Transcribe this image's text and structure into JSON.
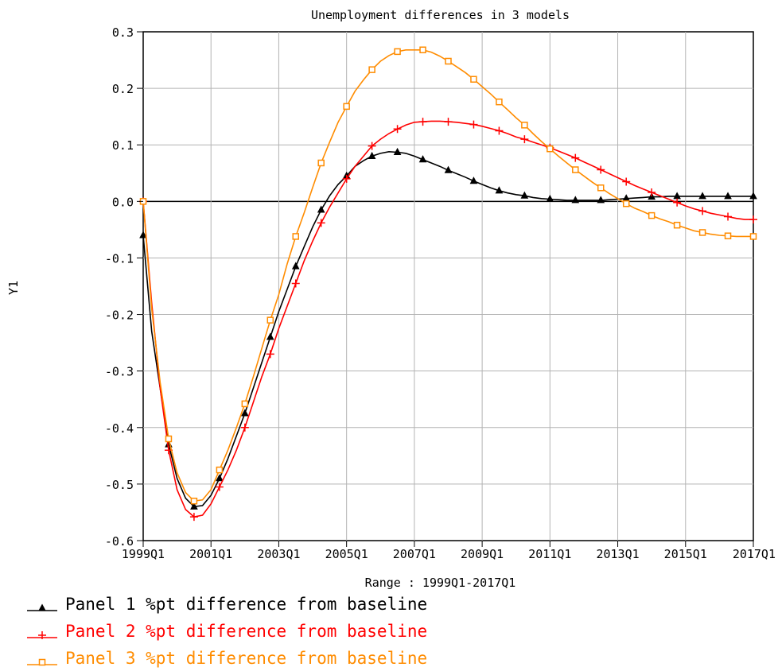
{
  "chart_data": {
    "type": "line",
    "title": "Unemployment differences in 3 models",
    "ylabel": "Y1",
    "xlabel": "Range : 1999Q1-2017Q1",
    "x_range": [
      1999.0,
      2017.0
    ],
    "ylim": [
      -0.6,
      0.3
    ],
    "yticks": [
      "0.3",
      "0.2",
      "0.1",
      "0.0",
      "-0.1",
      "-0.2",
      "-0.3",
      "-0.4",
      "-0.5",
      "-0.6"
    ],
    "xticks": [
      {
        "label": "1999Q1",
        "value": 1999.0
      },
      {
        "label": "2001Q1",
        "value": 2001.0
      },
      {
        "label": "2003Q1",
        "value": 2003.0
      },
      {
        "label": "2005Q1",
        "value": 2005.0
      },
      {
        "label": "2007Q1",
        "value": 2007.0
      },
      {
        "label": "2009Q1",
        "value": 2009.0
      },
      {
        "label": "2011Q1",
        "value": 2011.0
      },
      {
        "label": "2013Q1",
        "value": 2013.0
      },
      {
        "label": "2015Q1",
        "value": 2015.0
      },
      {
        "label": "2017Q1",
        "value": 2017.0
      }
    ],
    "grid": true,
    "zero_line": true,
    "legend_position": "bottom-left",
    "series": [
      {
        "name": "Panel 1 %pt difference from baseline",
        "color": "#000000",
        "marker": "triangle",
        "x": [
          1999.0,
          1999.25,
          1999.5,
          1999.75,
          2000.0,
          2000.25,
          2000.5,
          2000.75,
          2001.0,
          2001.25,
          2001.5,
          2001.75,
          2002.0,
          2002.25,
          2002.5,
          2002.75,
          2003.0,
          2003.25,
          2003.5,
          2003.75,
          2004.0,
          2004.25,
          2004.5,
          2004.75,
          2005.0,
          2005.25,
          2005.5,
          2005.75,
          2006.0,
          2006.25,
          2006.5,
          2006.75,
          2007.0,
          2007.25,
          2007.5,
          2007.75,
          2008.0,
          2008.25,
          2008.5,
          2008.75,
          2009.0,
          2009.25,
          2009.5,
          2009.75,
          2010.0,
          2010.25,
          2010.5,
          2010.75,
          2011.0,
          2011.25,
          2011.5,
          2011.75,
          2012.0,
          2012.25,
          2012.5,
          2012.75,
          2013.0,
          2013.25,
          2013.5,
          2013.75,
          2014.0,
          2014.25,
          2014.5,
          2014.75,
          2015.0,
          2015.25,
          2015.5,
          2015.75,
          2016.0,
          2016.25,
          2016.5,
          2016.75,
          2017.0
        ],
        "y": [
          -0.06,
          -0.23,
          -0.33,
          -0.43,
          -0.49,
          -0.525,
          -0.54,
          -0.538,
          -0.52,
          -0.49,
          -0.455,
          -0.415,
          -0.375,
          -0.33,
          -0.285,
          -0.24,
          -0.195,
          -0.155,
          -0.115,
          -0.08,
          -0.045,
          -0.015,
          0.01,
          0.03,
          0.045,
          0.062,
          0.072,
          0.08,
          0.085,
          0.088,
          0.087,
          0.085,
          0.08,
          0.074,
          0.068,
          0.062,
          0.055,
          0.049,
          0.043,
          0.036,
          0.03,
          0.024,
          0.019,
          0.015,
          0.012,
          0.01,
          0.007,
          0.005,
          0.004,
          0.003,
          0.002,
          0.002,
          0.002,
          0.002,
          0.002,
          0.003,
          0.004,
          0.005,
          0.006,
          0.007,
          0.008,
          0.008,
          0.009,
          0.009,
          0.009,
          0.009,
          0.009,
          0.009,
          0.009,
          0.009,
          0.009,
          0.009,
          0.009
        ]
      },
      {
        "name": "Panel 2 %pt difference from baseline",
        "color": "#ff0000",
        "marker": "plus",
        "x": [
          1999.0,
          1999.25,
          1999.5,
          1999.75,
          2000.0,
          2000.25,
          2000.5,
          2000.75,
          2001.0,
          2001.25,
          2001.5,
          2001.75,
          2002.0,
          2002.25,
          2002.5,
          2002.75,
          2003.0,
          2003.25,
          2003.5,
          2003.75,
          2004.0,
          2004.25,
          2004.5,
          2004.75,
          2005.0,
          2005.25,
          2005.5,
          2005.75,
          2006.0,
          2006.25,
          2006.5,
          2006.75,
          2007.0,
          2007.25,
          2007.5,
          2007.75,
          2008.0,
          2008.25,
          2008.5,
          2008.75,
          2009.0,
          2009.25,
          2009.5,
          2009.75,
          2010.0,
          2010.25,
          2010.5,
          2010.75,
          2011.0,
          2011.25,
          2011.5,
          2011.75,
          2012.0,
          2012.25,
          2012.5,
          2012.75,
          2013.0,
          2013.25,
          2013.5,
          2013.75,
          2014.0,
          2014.25,
          2014.5,
          2014.75,
          2015.0,
          2015.25,
          2015.5,
          2015.75,
          2016.0,
          2016.25,
          2016.5,
          2016.75,
          2017.0
        ],
        "y": [
          0.0,
          -0.18,
          -0.33,
          -0.44,
          -0.51,
          -0.545,
          -0.558,
          -0.555,
          -0.535,
          -0.505,
          -0.475,
          -0.44,
          -0.4,
          -0.355,
          -0.31,
          -0.27,
          -0.225,
          -0.185,
          -0.145,
          -0.105,
          -0.07,
          -0.038,
          -0.01,
          0.015,
          0.04,
          0.062,
          0.08,
          0.098,
          0.11,
          0.12,
          0.128,
          0.135,
          0.14,
          0.141,
          0.142,
          0.142,
          0.141,
          0.14,
          0.138,
          0.136,
          0.133,
          0.129,
          0.125,
          0.12,
          0.114,
          0.11,
          0.105,
          0.1,
          0.095,
          0.089,
          0.083,
          0.077,
          0.07,
          0.063,
          0.056,
          0.049,
          0.042,
          0.035,
          0.028,
          0.022,
          0.016,
          0.01,
          0.004,
          -0.002,
          -0.008,
          -0.013,
          -0.017,
          -0.021,
          -0.024,
          -0.027,
          -0.03,
          -0.032,
          -0.032
        ]
      },
      {
        "name": "Panel 3 %pt difference from baseline",
        "color": "#ff8c00",
        "marker": "square",
        "x": [
          1999.0,
          1999.25,
          1999.5,
          1999.75,
          2000.0,
          2000.25,
          2000.5,
          2000.75,
          2001.0,
          2001.25,
          2001.5,
          2001.75,
          2002.0,
          2002.25,
          2002.5,
          2002.75,
          2003.0,
          2003.25,
          2003.5,
          2003.75,
          2004.0,
          2004.25,
          2004.5,
          2004.75,
          2005.0,
          2005.25,
          2005.5,
          2005.75,
          2006.0,
          2006.25,
          2006.5,
          2006.75,
          2007.0,
          2007.25,
          2007.5,
          2007.75,
          2008.0,
          2008.25,
          2008.5,
          2008.75,
          2009.0,
          2009.25,
          2009.5,
          2009.75,
          2010.0,
          2010.25,
          2010.5,
          2010.75,
          2011.0,
          2011.25,
          2011.5,
          2011.75,
          2012.0,
          2012.25,
          2012.5,
          2012.75,
          2013.0,
          2013.25,
          2013.5,
          2013.75,
          2014.0,
          2014.25,
          2014.5,
          2014.75,
          2015.0,
          2015.25,
          2015.5,
          2015.75,
          2016.0,
          2016.25,
          2016.5,
          2016.75,
          2017.0
        ],
        "y": [
          0.0,
          -0.19,
          -0.32,
          -0.42,
          -0.48,
          -0.515,
          -0.53,
          -0.528,
          -0.51,
          -0.475,
          -0.44,
          -0.4,
          -0.358,
          -0.31,
          -0.26,
          -0.21,
          -0.165,
          -0.11,
          -0.062,
          -0.02,
          0.025,
          0.068,
          0.105,
          0.14,
          0.168,
          0.195,
          0.215,
          0.233,
          0.248,
          0.258,
          0.265,
          0.268,
          0.268,
          0.268,
          0.264,
          0.257,
          0.248,
          0.238,
          0.228,
          0.216,
          0.203,
          0.19,
          0.176,
          0.162,
          0.148,
          0.135,
          0.12,
          0.106,
          0.093,
          0.08,
          0.068,
          0.056,
          0.045,
          0.034,
          0.024,
          0.014,
          0.005,
          -0.004,
          -0.012,
          -0.018,
          -0.025,
          -0.031,
          -0.036,
          -0.042,
          -0.047,
          -0.052,
          -0.055,
          -0.058,
          -0.06,
          -0.061,
          -0.062,
          -0.062,
          -0.062
        ]
      }
    ]
  }
}
